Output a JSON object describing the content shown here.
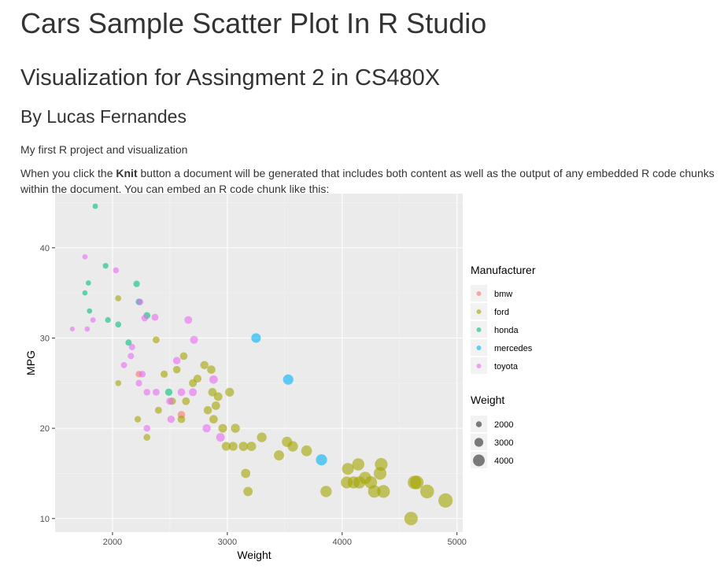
{
  "page": {
    "title": "Cars Sample Scatter Plot In R Studio",
    "subtitle": "Visualization for Assingment 2 in CS480X",
    "author": "By Lucas Fernandes",
    "intro": "My first R project and visualization",
    "body_before": "When you click the ",
    "body_bold": "Knit",
    "body_after": " button a document will be generated that includes both content as well as the output of any embedded R code chunks within the document. You can embed an R code chunk like this:"
  },
  "chart_data": {
    "type": "scatter",
    "title": "",
    "xlabel": "Weight",
    "ylabel": "MPG",
    "xlim": [
      1500,
      5050
    ],
    "ylim": [
      8.5,
      46
    ],
    "xticks": [
      2000,
      3000,
      4000,
      5000
    ],
    "yticks": [
      10,
      20,
      30,
      40
    ],
    "grid": true,
    "legend_color_title": "Manufacturer",
    "legend_size_title": "Weight",
    "legend_size_values": [
      2000,
      3000,
      4000
    ],
    "legend_placement": "right",
    "colors": {
      "bmw": "#F8766D",
      "ford": "#A3A500",
      "honda": "#00BF7D",
      "mercedes": "#00B0F6",
      "toyota": "#E76BF3"
    },
    "series": [
      {
        "name": "bmw",
        "points": [
          [
            2230,
            26
          ],
          [
            2600,
            21.5
          ]
        ]
      },
      {
        "name": "ford",
        "points": [
          [
            2050,
            34.4
          ],
          [
            2050,
            25
          ],
          [
            2220,
            21
          ],
          [
            2300,
            19
          ],
          [
            2380,
            29.8
          ],
          [
            2400,
            22
          ],
          [
            2450,
            26
          ],
          [
            2520,
            23
          ],
          [
            2560,
            26.5
          ],
          [
            2600,
            21
          ],
          [
            2620,
            28
          ],
          [
            2640,
            23
          ],
          [
            2700,
            25
          ],
          [
            2740,
            25.5
          ],
          [
            2800,
            27
          ],
          [
            2830,
            22
          ],
          [
            2860,
            26.5
          ],
          [
            2870,
            24
          ],
          [
            2880,
            21
          ],
          [
            2900,
            22.5
          ],
          [
            2920,
            23.5
          ],
          [
            2960,
            20
          ],
          [
            2990,
            18
          ],
          [
            3020,
            24
          ],
          [
            3050,
            18
          ],
          [
            3070,
            20
          ],
          [
            3140,
            18
          ],
          [
            3160,
            15
          ],
          [
            3180,
            13
          ],
          [
            3210,
            18
          ],
          [
            3300,
            19
          ],
          [
            3450,
            17
          ],
          [
            3520,
            18.5
          ],
          [
            3570,
            18
          ],
          [
            3690,
            17.5
          ],
          [
            3860,
            13
          ],
          [
            4040,
            14
          ],
          [
            4050,
            15.5
          ],
          [
            4100,
            14
          ],
          [
            4140,
            16
          ],
          [
            4150,
            14
          ],
          [
            4200,
            14.5
          ],
          [
            4250,
            14
          ],
          [
            4280,
            13
          ],
          [
            4330,
            15
          ],
          [
            4340,
            16
          ],
          [
            4360,
            13
          ],
          [
            4600,
            10
          ],
          [
            4630,
            14
          ],
          [
            4650,
            14
          ],
          [
            4740,
            13
          ],
          [
            4900,
            12
          ]
        ]
      },
      {
        "name": "honda",
        "points": [
          [
            1850,
            44.6
          ],
          [
            1760,
            35
          ],
          [
            1790,
            36.1
          ],
          [
            1800,
            33
          ],
          [
            1940,
            38
          ],
          [
            1960,
            32
          ],
          [
            2050,
            31.5
          ],
          [
            2140,
            29.5
          ],
          [
            2210,
            36
          ],
          [
            2230,
            34
          ],
          [
            2300,
            32.5
          ],
          [
            2490,
            24
          ]
        ]
      },
      {
        "name": "mercedes",
        "points": [
          [
            3250,
            30
          ],
          [
            3530,
            25.4
          ],
          [
            3820,
            16.5
          ]
        ]
      },
      {
        "name": "toyota",
        "points": [
          [
            1650,
            31
          ],
          [
            1760,
            39
          ],
          [
            1780,
            31
          ],
          [
            1830,
            32
          ],
          [
            2030,
            37.5
          ],
          [
            2100,
            27
          ],
          [
            2160,
            28
          ],
          [
            2170,
            29
          ],
          [
            2230,
            25
          ],
          [
            2240,
            34
          ],
          [
            2260,
            26
          ],
          [
            2280,
            32.2
          ],
          [
            2300,
            24
          ],
          [
            2300,
            20
          ],
          [
            2370,
            32.3
          ],
          [
            2380,
            24
          ],
          [
            2500,
            23
          ],
          [
            2510,
            21
          ],
          [
            2560,
            27.5
          ],
          [
            2600,
            24
          ],
          [
            2660,
            32
          ],
          [
            2700,
            24
          ],
          [
            2710,
            29.8
          ],
          [
            2820,
            20
          ],
          [
            2880,
            25.4
          ],
          [
            2940,
            19
          ]
        ]
      }
    ]
  }
}
